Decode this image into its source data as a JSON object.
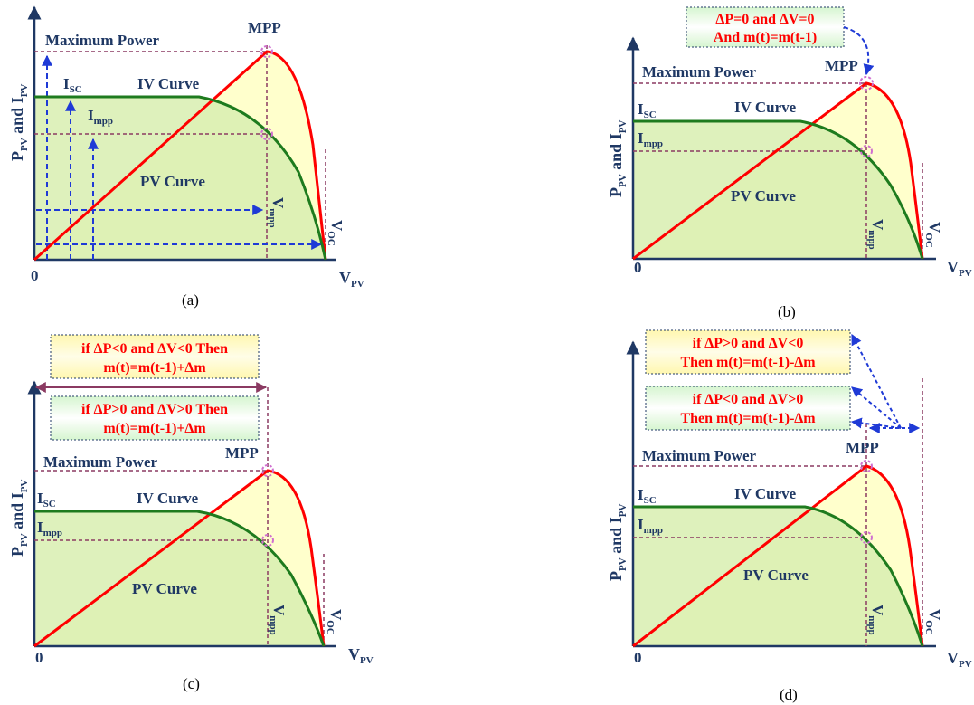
{
  "panels": [
    {
      "id": "a",
      "caption": "(a)",
      "ylabel_main": "P",
      "ylabel_sub1": "PV",
      "ylabel_mid": " and I",
      "ylabel_sub2": "PV",
      "xlabel_main": "V",
      "xlabel_sub": "PV",
      "origin": "0",
      "max_power": "Maximum Power",
      "mpp": "MPP",
      "iv_curve": "IV Curve",
      "pv_curve": "PV Curve",
      "isc_main": "I",
      "isc_sub": "SC",
      "impp_main": "I",
      "impp_sub": "mpp",
      "vmpp_main": "V",
      "vmpp_sub": "mpp",
      "voc_main": "V",
      "voc_sub": "OC"
    },
    {
      "id": "b",
      "caption": "(b)",
      "ylabel_main": "P",
      "ylabel_sub1": "PV",
      "ylabel_mid": " and I",
      "ylabel_sub2": "PV",
      "xlabel_main": "V",
      "xlabel_sub": "PV",
      "origin": "0",
      "max_power": "Maximum Power",
      "mpp": "MPP",
      "iv_curve": "IV Curve",
      "pv_curve": "PV Curve",
      "isc_main": "I",
      "isc_sub": "SC",
      "impp_main": "I",
      "impp_sub": "mpp",
      "vmpp_main": "V",
      "vmpp_sub": "mpp",
      "voc_main": "V",
      "voc_sub": "OC",
      "box1_line1": "∆P=0 and ∆V=0",
      "box1_line2": "And m(t)=m(t-1)"
    },
    {
      "id": "c",
      "caption": "(c)",
      "ylabel_main": "P",
      "ylabel_sub1": "PV",
      "ylabel_mid": " and I",
      "ylabel_sub2": "PV",
      "xlabel_main": "V",
      "xlabel_sub": "PV",
      "origin": "0",
      "max_power": "Maximum Power",
      "mpp": "MPP",
      "iv_curve": "IV Curve",
      "pv_curve": "PV Curve",
      "isc_main": "I",
      "isc_sub": "SC",
      "impp_main": "I",
      "impp_sub": "mpp",
      "vmpp_main": "V",
      "vmpp_sub": "mpp",
      "voc_main": "V",
      "voc_sub": "OC",
      "box1_line1": "if ∆P<0 and ∆V<0 Then",
      "box1_line2": "m(t)=m(t-1)+∆m",
      "box2_line1": "if ∆P>0 and ∆V>0 Then",
      "box2_line2": "m(t)=m(t-1)+∆m"
    },
    {
      "id": "d",
      "caption": "(d)",
      "ylabel_main": "P",
      "ylabel_sub1": "PV",
      "ylabel_mid": " and I",
      "ylabel_sub2": "PV",
      "xlabel_main": "V",
      "xlabel_sub": "PV",
      "origin": "0",
      "max_power": "Maximum Power",
      "mpp": "MPP",
      "iv_curve": "IV Curve",
      "pv_curve": "PV Curve",
      "isc_main": "I",
      "isc_sub": "SC",
      "impp_main": "I",
      "impp_sub": "mpp",
      "vmpp_main": "V",
      "vmpp_sub": "mpp",
      "voc_main": "V",
      "voc_sub": "OC",
      "box1_line1": "if ∆P>0 and ∆V<0",
      "box1_line2": "Then m(t)=m(t-1)-∆m",
      "box2_line1": "if ∆P<0 and ∆V>0",
      "box2_line2": "Then m(t)=m(t-1)-∆m"
    }
  ],
  "colors": {
    "axis": "#1f3864",
    "pv_curve": "#ff0000",
    "iv_curve": "#1e7b1e",
    "guide": "#8b3a62",
    "arrow": "#1f3ad6",
    "fill_yellow": "#ffffcc",
    "fill_green": "#d8eeb0",
    "box_text": "#ff0000"
  }
}
